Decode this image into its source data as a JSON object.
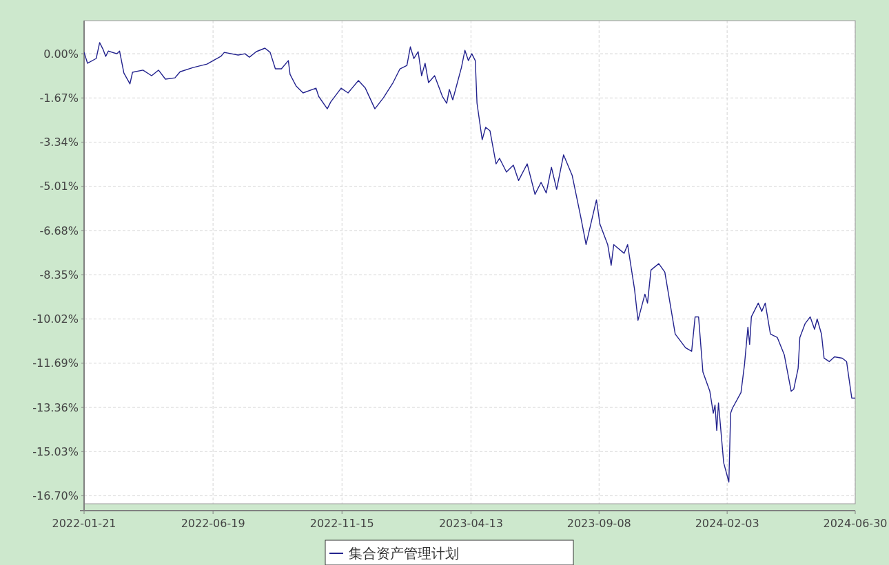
{
  "chart_data": {
    "type": "line",
    "xlim": [
      "2022-01-21",
      "2024-06-30"
    ],
    "xticks": [
      "2022-01-21",
      "2022-06-19",
      "2022-11-15",
      "2023-04-13",
      "2023-09-08",
      "2024-02-03",
      "2024-06-30"
    ],
    "ylim": [
      -17.0,
      1.25
    ],
    "yticks": [
      {
        "value": 0,
        "label": "0.00%"
      },
      {
        "value": -1.67,
        "label": "-1.67%"
      },
      {
        "value": -3.34,
        "label": "-3.34%"
      },
      {
        "value": -5.01,
        "label": "-5.01%"
      },
      {
        "value": -6.68,
        "label": "-6.68%"
      },
      {
        "value": -8.35,
        "label": "-8.35%"
      },
      {
        "value": -10.02,
        "label": "-10.02%"
      },
      {
        "value": -11.69,
        "label": "-11.69%"
      },
      {
        "value": -13.36,
        "label": "-13.36%"
      },
      {
        "value": -15.03,
        "label": "-15.03%"
      },
      {
        "value": -16.7,
        "label": "-16.70%"
      }
    ],
    "grid": true,
    "legend": "bottom",
    "marker": "none",
    "line_style": "solid",
    "series": [
      {
        "name": "集合资产管理计划",
        "color": "#23238e",
        "x": [
          "2022-01-21",
          "2022-01-25",
          "2022-02-04",
          "2022-02-08",
          "2022-02-12",
          "2022-02-15",
          "2022-02-18",
          "2022-02-28",
          "2022-03-03",
          "2022-03-08",
          "2022-03-15",
          "2022-03-18",
          "2022-03-30",
          "2022-04-09",
          "2022-04-17",
          "2022-04-25",
          "2022-05-06",
          "2022-05-12",
          "2022-05-27",
          "2022-06-12",
          "2022-06-28",
          "2022-07-02",
          "2022-07-18",
          "2022-07-26",
          "2022-07-31",
          "2022-08-08",
          "2022-08-18",
          "2022-08-24",
          "2022-08-30",
          "2022-09-06",
          "2022-09-14",
          "2022-09-16",
          "2022-09-23",
          "2022-10-01",
          "2022-10-16",
          "2022-10-19",
          "2022-10-29",
          "2022-11-02",
          "2022-11-14",
          "2022-11-22",
          "2022-12-04",
          "2022-12-12",
          "2022-12-23",
          "2023-01-02",
          "2023-01-13",
          "2023-01-21",
          "2023-01-29",
          "2023-02-02",
          "2023-02-06",
          "2023-02-11",
          "2023-02-15",
          "2023-02-19",
          "2023-02-23",
          "2023-03-02",
          "2023-03-11",
          "2023-03-16",
          "2023-03-19",
          "2023-03-23",
          "2023-04-02",
          "2023-04-06",
          "2023-04-10",
          "2023-04-14",
          "2023-04-18",
          "2023-04-20",
          "2023-04-26",
          "2023-04-30",
          "2023-05-05",
          "2023-05-12",
          "2023-05-16",
          "2023-05-24",
          "2023-06-01",
          "2023-06-07",
          "2023-06-17",
          "2023-06-26",
          "2023-07-03",
          "2023-07-09",
          "2023-07-15",
          "2023-07-21",
          "2023-07-29",
          "2023-08-08",
          "2023-08-18",
          "2023-08-24",
          "2023-08-29",
          "2023-09-05",
          "2023-09-09",
          "2023-09-18",
          "2023-09-22",
          "2023-09-25",
          "2023-10-07",
          "2023-10-11",
          "2023-10-19",
          "2023-10-23",
          "2023-10-31",
          "2023-11-03",
          "2023-11-07",
          "2023-11-16",
          "2023-11-23",
          "2023-12-01",
          "2023-12-05",
          "2023-12-17",
          "2023-12-24",
          "2023-12-28",
          "2024-01-01",
          "2024-01-06",
          "2024-01-14",
          "2024-01-18",
          "2024-01-20",
          "2024-01-22",
          "2024-01-24",
          "2024-01-30",
          "2024-02-05",
          "2024-02-07",
          "2024-02-09",
          "2024-02-19",
          "2024-02-23",
          "2024-02-27",
          "2024-02-29",
          "2024-03-02",
          "2024-03-10",
          "2024-03-14",
          "2024-03-18",
          "2024-03-24",
          "2024-04-01",
          "2024-04-09",
          "2024-04-17",
          "2024-04-20",
          "2024-04-25",
          "2024-04-27",
          "2024-05-03",
          "2024-05-09",
          "2024-05-14",
          "2024-05-17",
          "2024-05-22",
          "2024-05-25",
          "2024-05-31",
          "2024-06-06",
          "2024-06-15",
          "2024-06-20",
          "2024-06-26",
          "2024-06-30"
        ],
        "values": [
          0.05,
          -0.36,
          -0.18,
          0.42,
          0.16,
          -0.1,
          0.1,
          0,
          0.1,
          -0.73,
          -1.14,
          -0.7,
          -0.62,
          -0.83,
          -0.62,
          -0.96,
          -0.91,
          -0.68,
          -0.52,
          -0.39,
          -0.1,
          0.05,
          -0.05,
          0,
          -0.13,
          0.08,
          0.21,
          0.05,
          -0.57,
          -0.57,
          -0.26,
          -0.78,
          -1.22,
          -1.48,
          -1.3,
          -1.61,
          -2.08,
          -1.82,
          -1.3,
          -1.48,
          -1.01,
          -1.3,
          -2.08,
          -1.66,
          -1.09,
          -0.57,
          -0.44,
          0.26,
          -0.18,
          0.08,
          -0.83,
          -0.36,
          -1.09,
          -0.83,
          -1.61,
          -1.87,
          -1.35,
          -1.74,
          -0.52,
          0.13,
          -0.26,
          0,
          -0.26,
          -1.87,
          -3.25,
          -2.78,
          -2.91,
          -4.16,
          -3.95,
          -4.47,
          -4.21,
          -4.79,
          -4.16,
          -5.31,
          -4.86,
          -5.26,
          -4.29,
          -5.12,
          -3.82,
          -4.6,
          -6.19,
          -7.21,
          -6.5,
          -5.52,
          -6.43,
          -7.21,
          -7.99,
          -7.21,
          -7.54,
          -7.21,
          -8.9,
          -10.07,
          -9.08,
          -9.42,
          -8.17,
          -7.93,
          -8.25,
          -9.81,
          -10.59,
          -11.11,
          -11.24,
          -9.94,
          -9.94,
          -12.02,
          -12.75,
          -13.58,
          -13.27,
          -14.23,
          -13.19,
          -15.45,
          -16.18,
          -13.58,
          -13.4,
          -12.8,
          -11.76,
          -10.33,
          -10.98,
          -9.94,
          -9.42,
          -9.73,
          -9.42,
          -10.59,
          -10.72,
          -11.37,
          -12.75,
          -12.67,
          -11.89,
          -10.72,
          -10.2,
          -9.94,
          -10.41,
          -10.02,
          -10.59,
          -11.5,
          -11.63,
          -11.45,
          -11.5,
          -11.63,
          -13.01,
          -13.01
        ]
      }
    ]
  }
}
